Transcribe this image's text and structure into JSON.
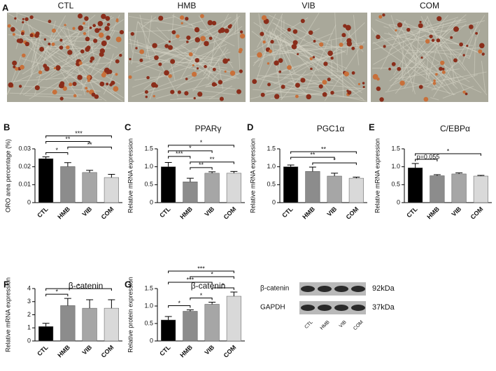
{
  "panel_a": {
    "letter": "A",
    "labels": [
      "CTL",
      "HMB",
      "VIB",
      "COM"
    ]
  },
  "chart_data": [
    {
      "type": "bar",
      "panel": "B",
      "ylabel": "ORO area percentage (%)",
      "categories": [
        "CTL",
        "HMB",
        "VIB",
        "COM"
      ],
      "values": [
        0.0245,
        0.0201,
        0.0168,
        0.014
      ],
      "errors": [
        0.001,
        0.0022,
        0.0012,
        0.0018
      ],
      "colors": [
        "#000000",
        "#8c8c8c",
        "#a6a6a6",
        "#d9d9d9"
      ],
      "ylim": [
        0,
        0.03
      ],
      "yticks": [
        0,
        0.01,
        0.02,
        0.03
      ],
      "significance": [
        {
          "from": "CTL",
          "to": "HMB",
          "label": "*"
        },
        {
          "from": "HMB",
          "to": "COM",
          "label": "**"
        },
        {
          "from": "CTL",
          "to": "VIB",
          "label": "**"
        },
        {
          "from": "CTL",
          "to": "COM",
          "label": "***"
        }
      ]
    },
    {
      "type": "bar",
      "panel": "C",
      "title": "PPARγ",
      "ylabel": "Relative mRNA expression",
      "categories": [
        "CTL",
        "HMB",
        "VIB",
        "COM"
      ],
      "values": [
        1.0,
        0.58,
        0.82,
        0.82
      ],
      "errors": [
        0.12,
        0.1,
        0.04,
        0.05
      ],
      "colors": [
        "#000000",
        "#8c8c8c",
        "#a6a6a6",
        "#d9d9d9"
      ],
      "ylim": [
        0,
        1.5
      ],
      "yticks": [
        0,
        0.5,
        {
          "value": 1,
          "label": "1.0"
        },
        1.5
      ],
      "significance": [
        {
          "from": "HMB",
          "to": "VIB",
          "label": "**"
        },
        {
          "from": "HMB",
          "to": "COM",
          "label": "**"
        },
        {
          "from": "CTL",
          "to": "HMB",
          "label": "***"
        },
        {
          "from": "CTL",
          "to": "VIB",
          "label": "*"
        },
        {
          "from": "CTL",
          "to": "COM",
          "label": "*"
        }
      ]
    },
    {
      "type": "bar",
      "panel": "D",
      "title": "PGC1α",
      "ylabel": "Relative mRNA expression",
      "categories": [
        "CTL",
        "HMB",
        "VIB",
        "COM"
      ],
      "values": [
        1.0,
        0.87,
        0.74,
        0.68
      ],
      "errors": [
        0.05,
        0.12,
        0.08,
        0.03
      ],
      "colors": [
        "#000000",
        "#8c8c8c",
        "#a6a6a6",
        "#d9d9d9"
      ],
      "ylim": [
        0,
        1.5
      ],
      "yticks": [
        0,
        0.5,
        {
          "value": 1,
          "label": "1.0"
        },
        1.5
      ],
      "significance": [
        {
          "from": "HMB",
          "to": "COM",
          "label": "*"
        },
        {
          "from": "CTL",
          "to": "VIB",
          "label": "**"
        },
        {
          "from": "CTL",
          "to": "COM",
          "label": "**"
        }
      ]
    },
    {
      "type": "bar",
      "panel": "E",
      "title": "C/EBPα",
      "ylabel": "Relative mRNA expression",
      "categories": [
        "CTL",
        "HMB",
        "VIB",
        "COM"
      ],
      "values": [
        0.97,
        0.75,
        0.8,
        0.74
      ],
      "errors": [
        0.12,
        0.03,
        0.03,
        0.02
      ],
      "colors": [
        "#000000",
        "#8c8c8c",
        "#a6a6a6",
        "#d9d9d9"
      ],
      "ylim": [
        0,
        1.5
      ],
      "yticks": [
        0,
        0.5,
        {
          "value": 1,
          "label": "1.0"
        },
        1.5
      ],
      "significance": [
        {
          "from": "CTL",
          "to": "HMB",
          "label": "p=0.055"
        },
        {
          "from": "CTL",
          "to": "COM",
          "label": "*"
        }
      ]
    },
    {
      "type": "bar",
      "panel": "F",
      "title": "β-catenin",
      "ylabel": "Relative mRNA expression",
      "categories": [
        "CTL",
        "HMB",
        "VIB",
        "COM"
      ],
      "values": [
        1.1,
        2.7,
        2.5,
        2.5
      ],
      "errors": [
        0.25,
        0.55,
        0.65,
        0.65
      ],
      "colors": [
        "#000000",
        "#8c8c8c",
        "#a6a6a6",
        "#d9d9d9"
      ],
      "ylim": [
        0,
        4
      ],
      "yticks": [
        0,
        1,
        2,
        3,
        4
      ],
      "significance": [
        {
          "from": "CTL",
          "to": "HMB",
          "label": "*"
        },
        {
          "from": "CTL",
          "to": "COM",
          "label": "*"
        }
      ]
    },
    {
      "type": "bar",
      "panel": "G",
      "title": "β-catenin",
      "ylabel": "Relative protein expression",
      "categories": [
        "CTL",
        "HMB",
        "VIB",
        "COM"
      ],
      "values": [
        0.6,
        0.85,
        1.05,
        1.28
      ],
      "errors": [
        0.1,
        0.04,
        0.06,
        0.12
      ],
      "colors": [
        "#000000",
        "#8c8c8c",
        "#a6a6a6",
        "#d9d9d9"
      ],
      "ylim": [
        0,
        1.5
      ],
      "yticks": [
        0,
        0.5,
        {
          "value": 1,
          "label": "1.0"
        },
        1.5
      ],
      "significance": [
        {
          "from": "CTL",
          "to": "HMB",
          "label": "*"
        },
        {
          "from": "HMB",
          "to": "VIB",
          "label": "*"
        },
        {
          "from": "VIB",
          "to": "COM",
          "label": "*"
        },
        {
          "from": "CTL",
          "to": "VIB",
          "label": "***"
        },
        {
          "from": "HMB",
          "to": "COM",
          "label": "*"
        },
        {
          "from": "CTL",
          "to": "COM",
          "label": "***"
        }
      ]
    }
  ],
  "blot": {
    "bands": [
      {
        "name": "β-catenin",
        "size": "92kDa"
      },
      {
        "name": "GAPDH",
        "size": "37kDa"
      }
    ],
    "lanes": [
      "CTL",
      "HMB",
      "VIB",
      "COM"
    ]
  }
}
